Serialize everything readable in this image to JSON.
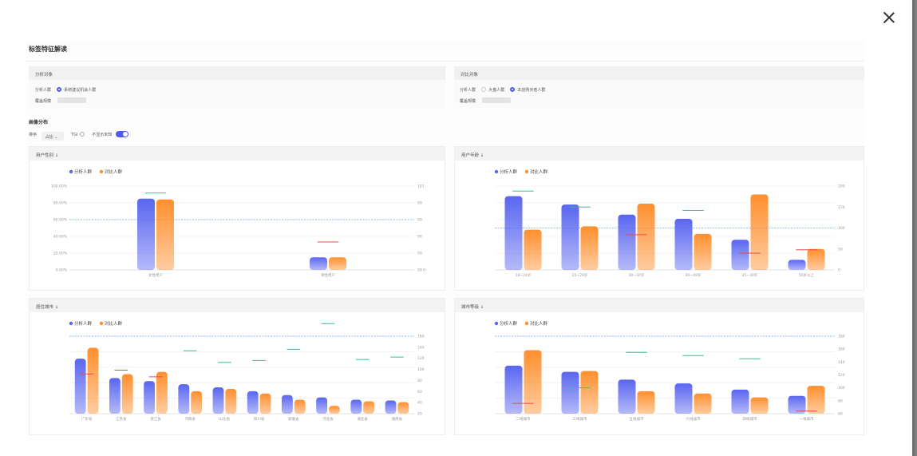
{
  "page": {
    "title": "标签特征解读"
  },
  "analysis": {
    "header": "分析对象",
    "crowd_label": "分析人群",
    "crowd_value": "系统建议机会人群",
    "scale_label": "覆盖规模"
  },
  "compare": {
    "header": "对比对象",
    "crowd_label": "分析人群",
    "option_1": "大盘人群",
    "option_2": "本店购买者人群",
    "scale_label": "覆盖规模"
  },
  "distribution": {
    "title": "画像分布",
    "sort_label": "排序",
    "sort_value": "占比",
    "tgi_label": "TGI",
    "hide_unknown_label": "不显示未知",
    "hide_unknown_on": true
  },
  "colors": {
    "analysis": "#5a66f0",
    "compare": "#ff8f2e",
    "tgi_high": "#2fc196",
    "tgi_low": "#f04848",
    "ref_line": "#6aa9f4"
  },
  "chart_data": [
    {
      "type": "bar",
      "panel_title": "用户性别 ↓",
      "legend": [
        "分析人群",
        "对比人群"
      ],
      "categories": [
        "女性用户",
        "男性用户"
      ],
      "series": [
        {
          "name": "分析人群",
          "values": [
            85,
            15
          ]
        },
        {
          "name": "对比人群",
          "values": [
            84,
            15
          ]
        }
      ],
      "tgi": [
        101,
        94
      ],
      "y_ticks": [
        "0.00%",
        "20.00%",
        "40.00%",
        "60.00%",
        "80.00%",
        "100.00%"
      ],
      "y2_ticks": [
        "99.0",
        "99",
        "99",
        "99",
        "99",
        "101"
      ],
      "ylim": [
        0,
        100
      ],
      "y2lim": [
        90,
        102
      ],
      "ref": 60
    },
    {
      "type": "bar",
      "panel_title": "用户年龄 ↓",
      "legend": [
        "分析人群",
        "对比人群"
      ],
      "categories": [
        "18~24岁",
        "25~29岁",
        "30~34岁",
        "40~49岁",
        "35~39岁",
        "50岁以上"
      ],
      "series": [
        {
          "name": "分析人群",
          "values": [
            88,
            78,
            66,
            61,
            36,
            12
          ]
        },
        {
          "name": "对比人群",
          "values": [
            48,
            52,
            79,
            43,
            90,
            25
          ]
        }
      ],
      "tgi": [
        188,
        150,
        84,
        142,
        40,
        48
      ],
      "y_ticks": [
        "",
        "",
        "",
        "",
        "",
        ""
      ],
      "y2_ticks": [
        "0",
        "50",
        "100",
        "150",
        "200"
      ],
      "ylim": [
        0,
        100
      ],
      "y2lim": [
        0,
        200
      ],
      "ref": 50
    },
    {
      "type": "bar",
      "panel_title": "居住城市 ↓",
      "legend": [
        "分析人群",
        "对比人群"
      ],
      "categories": [
        "广东省",
        "江苏省",
        "浙江省",
        "河南省",
        "山东省",
        "四川省",
        "安徽省",
        "河北省",
        "湖北省",
        "湖南省"
      ],
      "series": [
        {
          "name": "分析人群",
          "values": [
            71,
            46,
            42,
            38,
            34,
            29,
            24,
            21,
            18,
            17
          ]
        },
        {
          "name": "对比人群",
          "values": [
            85,
            51,
            54,
            29,
            32,
            26,
            18,
            10,
            16,
            15
          ]
        }
      ],
      "tgi": [
        82,
        90,
        76,
        130,
        106,
        110,
        133,
        186,
        112,
        117
      ],
      "y_ticks": [
        "",
        "",
        "",
        "",
        "",
        ""
      ],
      "y2_ticks": [
        "20",
        "40",
        "60",
        "80",
        "100",
        "120",
        "140",
        "160"
      ],
      "ylim": [
        0,
        100
      ],
      "y2lim": [
        0,
        160
      ],
      "ref": 100
    },
    {
      "type": "bar",
      "panel_title": "城市等级 ↓",
      "legend": [
        "分析人群",
        "对比人群"
      ],
      "categories": [
        "二线城市",
        "三线城市",
        "五线城市",
        "六线城市",
        "四线城市",
        "一线城市"
      ],
      "series": [
        {
          "name": "分析人群",
          "values": [
            62,
            54,
            44,
            39,
            31,
            23
          ]
        },
        {
          "name": "对比人群",
          "values": [
            82,
            55,
            29,
            26,
            21,
            36
          ]
        }
      ],
      "tgi": [
        76,
        100,
        155,
        150,
        145,
        64
      ],
      "y_ticks": [
        "",
        "",
        "",
        "",
        "",
        ""
      ],
      "y2_ticks": [
        "60",
        "80",
        "100",
        "120",
        "140",
        "160",
        "180"
      ],
      "ylim": [
        0,
        100
      ],
      "y2lim": [
        60,
        180
      ],
      "ref": 100
    }
  ]
}
